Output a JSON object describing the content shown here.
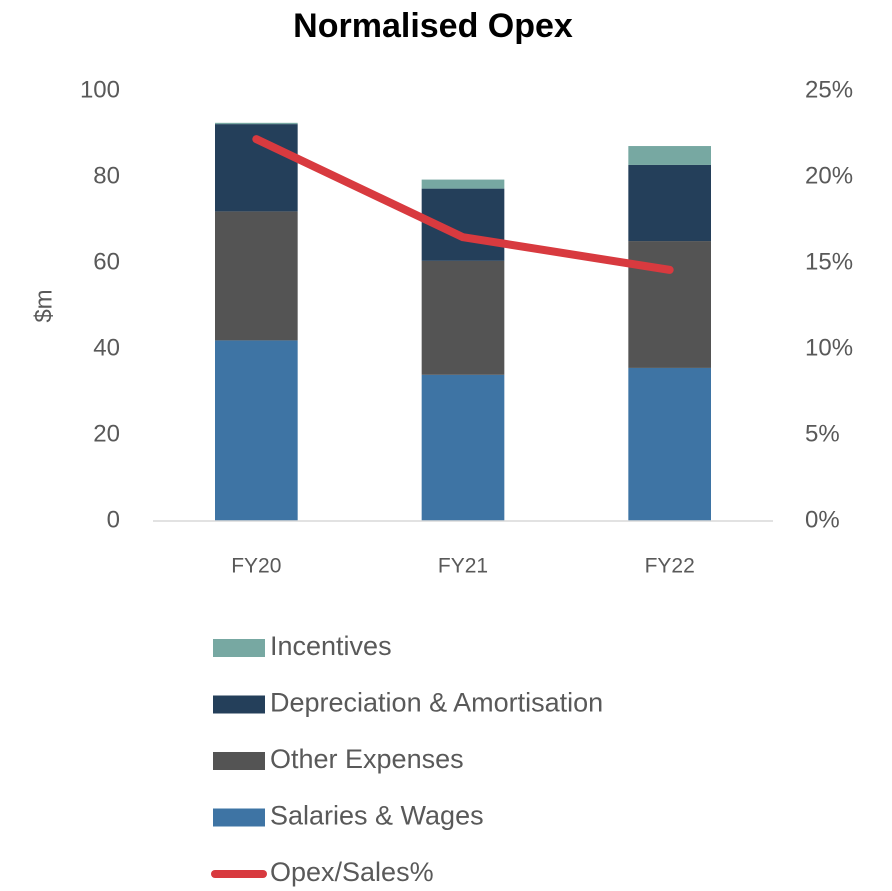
{
  "chart_data": {
    "type": "bar",
    "stacked": true,
    "title": "Normalised Opex",
    "y_label": "$m",
    "categories": [
      "FY20",
      "FY21",
      "FY22"
    ],
    "series": [
      {
        "name": "Salaries & Wages",
        "color": "#3e74a4",
        "values": [
          42,
          34,
          35.6
        ]
      },
      {
        "name": "Other Expenses",
        "color": "#545454",
        "values": [
          30,
          26.5,
          29.5
        ]
      },
      {
        "name": "Depreciation & Amortisation",
        "color": "#243f5a",
        "values": [
          20.3,
          16.8,
          17.7
        ]
      },
      {
        "name": "Incentives",
        "color": "#77a8a2",
        "values": [
          0.3,
          2.1,
          4.4
        ]
      },
      {
        "name": "Opex/Sales%",
        "color": "#d83a3f",
        "type": "line",
        "axis": "y2",
        "values": [
          22.2,
          16.5,
          14.6
        ]
      }
    ],
    "ylim": [
      0,
      100
    ],
    "yticks": [
      0,
      20,
      40,
      60,
      80,
      100
    ],
    "y2lim": [
      0,
      25
    ],
    "y2ticks": [
      {
        "value": 0,
        "label": "0%"
      },
      {
        "value": 5,
        "label": "5%"
      },
      {
        "value": 10,
        "label": "10%"
      },
      {
        "value": 15,
        "label": "15%"
      },
      {
        "value": 20,
        "label": "20%"
      },
      {
        "value": 25,
        "label": "25%"
      }
    ]
  }
}
